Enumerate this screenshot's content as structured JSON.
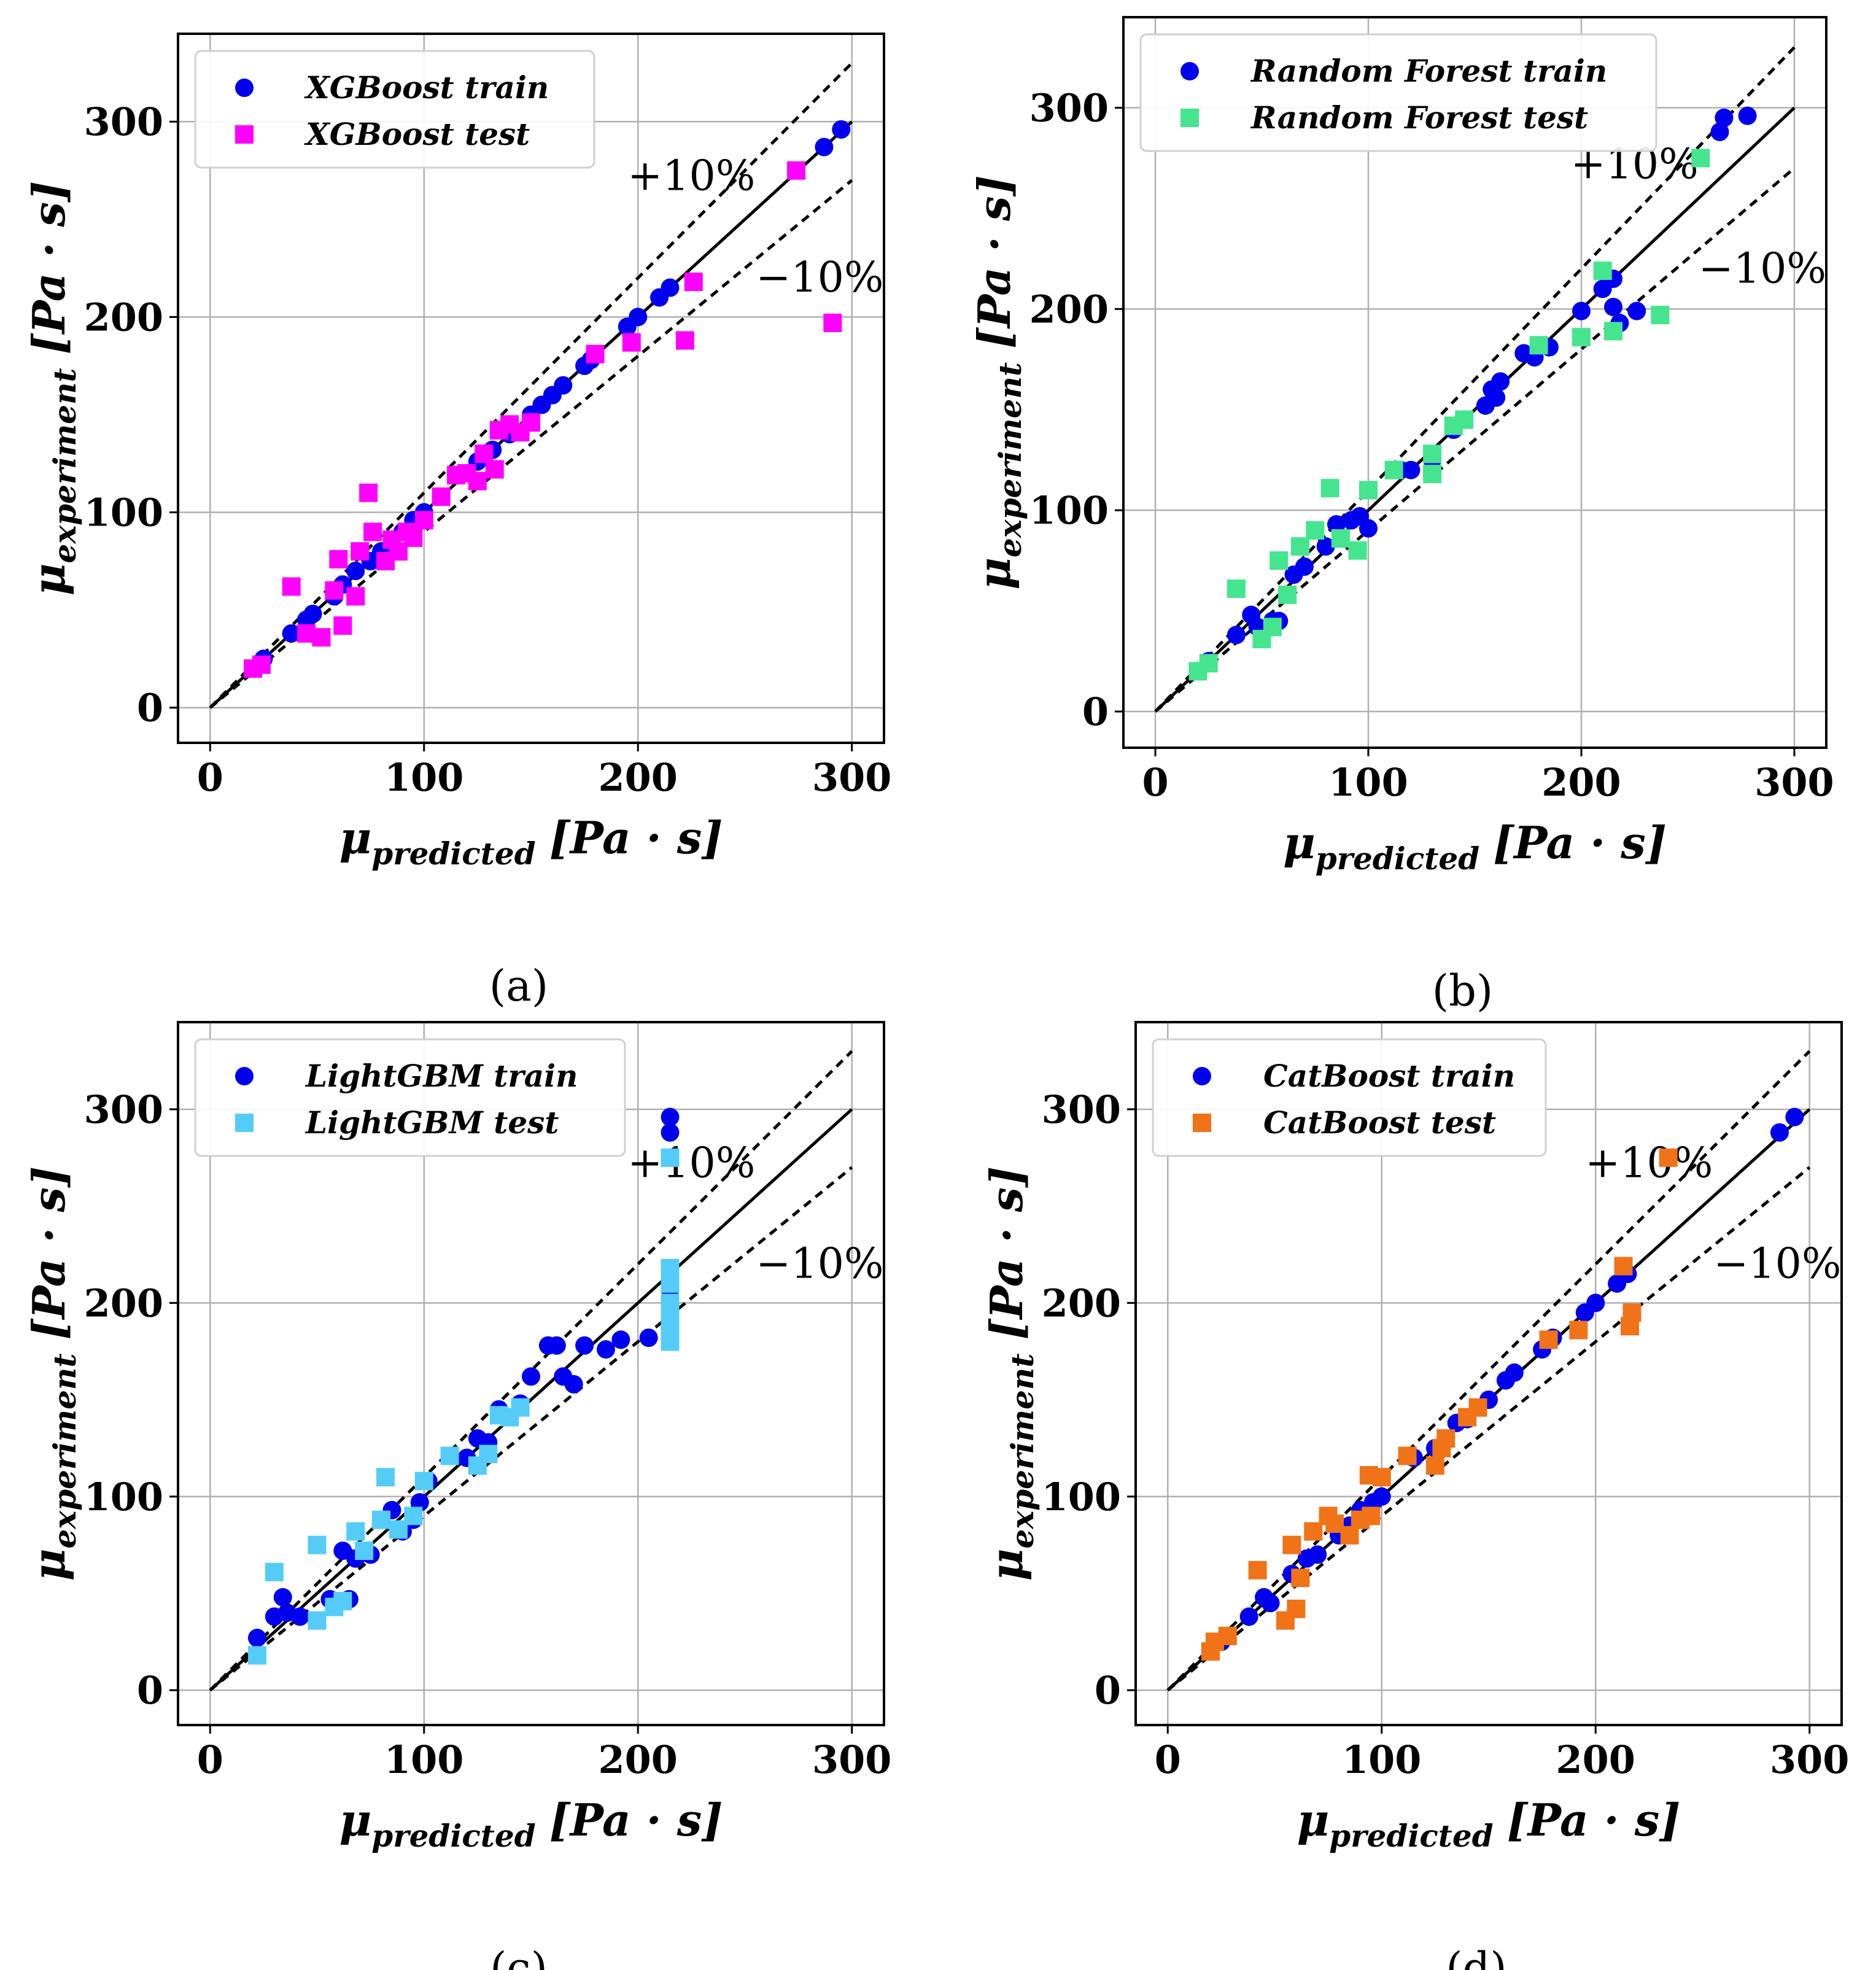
{
  "chart_data": [
    {
      "type": "scatter",
      "panel_label": "(a)",
      "xlabel": {
        "main": "μ",
        "sub": "predicted",
        "unit": "[Pa · s]"
      },
      "ylabel": {
        "main": "μ",
        "sub": "experiment",
        "unit": "[Pa · s]"
      },
      "xlim": [
        -15,
        315
      ],
      "ylim": [
        -18,
        345
      ],
      "xticks": [
        "0",
        "100",
        "200",
        "300"
      ],
      "yticks": [
        "0",
        "100",
        "200",
        "300"
      ],
      "grid": true,
      "legend_position": "top-left",
      "band_labels": [
        "+10%",
        "−10%"
      ],
      "series": [
        {
          "name": "XGBoost train",
          "marker": "circle",
          "color": "#0000ee",
          "points": [
            [
              20,
              20
            ],
            [
              25,
              25
            ],
            [
              38,
              38
            ],
            [
              45,
              45
            ],
            [
              48,
              48
            ],
            [
              58,
              57
            ],
            [
              62,
              63
            ],
            [
              68,
              70
            ],
            [
              75,
              75
            ],
            [
              80,
              80
            ],
            [
              85,
              85
            ],
            [
              90,
              90
            ],
            [
              95,
              96
            ],
            [
              100,
              100
            ],
            [
              108,
              108
            ],
            [
              118,
              120
            ],
            [
              125,
              126
            ],
            [
              132,
              132
            ],
            [
              140,
              140
            ],
            [
              150,
              150
            ],
            [
              155,
              155
            ],
            [
              160,
              160
            ],
            [
              165,
              165
            ],
            [
              175,
              175
            ],
            [
              178,
              178
            ],
            [
              195,
              195
            ],
            [
              200,
              200
            ],
            [
              210,
              210
            ],
            [
              215,
              215
            ],
            [
              287,
              287
            ],
            [
              295,
              296
            ]
          ]
        },
        {
          "name": "XGBoost test",
          "marker": "square",
          "color": "#ff00ff",
          "points": [
            [
              20,
              20
            ],
            [
              24,
              22
            ],
            [
              38,
              62
            ],
            [
              45,
              38
            ],
            [
              52,
              36
            ],
            [
              58,
              60
            ],
            [
              60,
              76
            ],
            [
              62,
              42
            ],
            [
              68,
              57
            ],
            [
              70,
              80
            ],
            [
              74,
              110
            ],
            [
              76,
              90
            ],
            [
              82,
              75
            ],
            [
              85,
              86
            ],
            [
              88,
              80
            ],
            [
              92,
              90
            ],
            [
              95,
              87
            ],
            [
              100,
              96
            ],
            [
              108,
              108
            ],
            [
              115,
              119
            ],
            [
              120,
              120
            ],
            [
              125,
              116
            ],
            [
              128,
              130
            ],
            [
              133,
              122
            ],
            [
              135,
              142
            ],
            [
              140,
              145
            ],
            [
              145,
              141
            ],
            [
              150,
              146
            ],
            [
              180,
              181
            ],
            [
              197,
              187
            ],
            [
              222,
              188
            ],
            [
              226,
              218
            ],
            [
              274,
              275
            ],
            [
              291,
              197
            ]
          ]
        }
      ]
    },
    {
      "type": "scatter",
      "panel_label": "(b)",
      "xlabel": {
        "main": "μ",
        "sub": "predicted",
        "unit": "[Pa · s]"
      },
      "ylabel": {
        "main": "μ",
        "sub": "experiment",
        "unit": "[Pa · s]"
      },
      "xlim": [
        -15,
        315
      ],
      "ylim": [
        -18,
        345
      ],
      "xticks": [
        "0",
        "100",
        "200",
        "300"
      ],
      "yticks": [
        "0",
        "100",
        "200",
        "300"
      ],
      "grid": true,
      "legend_position": "top-left",
      "band_labels": [
        "+10%",
        "−10%"
      ],
      "series": [
        {
          "name": "Random Forest train",
          "marker": "circle",
          "color": "#0000ee",
          "points": [
            [
              20,
              20
            ],
            [
              25,
              25
            ],
            [
              38,
              38
            ],
            [
              45,
              48
            ],
            [
              48,
              42
            ],
            [
              55,
              45
            ],
            [
              58,
              45
            ],
            [
              65,
              68
            ],
            [
              70,
              72
            ],
            [
              80,
              82
            ],
            [
              85,
              93
            ],
            [
              92,
              95
            ],
            [
              96,
              97
            ],
            [
              100,
              91
            ],
            [
              115,
              120
            ],
            [
              120,
              120
            ],
            [
              130,
              125
            ],
            [
              140,
              140
            ],
            [
              145,
              145
            ],
            [
              155,
              152
            ],
            [
              158,
              160
            ],
            [
              160,
              156
            ],
            [
              162,
              164
            ],
            [
              173,
              178
            ],
            [
              178,
              176
            ],
            [
              185,
              181
            ],
            [
              200,
              199
            ],
            [
              210,
              210
            ],
            [
              215,
              215
            ],
            [
              215,
              201
            ],
            [
              218,
              193
            ],
            [
              226,
              199
            ],
            [
              265,
              288
            ],
            [
              267,
              295
            ],
            [
              278,
              296
            ]
          ]
        },
        {
          "name": "Random Forest test",
          "marker": "square",
          "color": "#44e58e",
          "points": [
            [
              20,
              20
            ],
            [
              25,
              24
            ],
            [
              38,
              61
            ],
            [
              50,
              36
            ],
            [
              55,
              42
            ],
            [
              58,
              75
            ],
            [
              62,
              58
            ],
            [
              68,
              82
            ],
            [
              75,
              90
            ],
            [
              82,
              111
            ],
            [
              87,
              86
            ],
            [
              95,
              80
            ],
            [
              100,
              110
            ],
            [
              112,
              120
            ],
            [
              130,
              118
            ],
            [
              130,
              128
            ],
            [
              140,
              142
            ],
            [
              145,
              145
            ],
            [
              180,
              182
            ],
            [
              200,
              186
            ],
            [
              210,
              219
            ],
            [
              215,
              189
            ],
            [
              237,
              197
            ],
            [
              256,
              275
            ]
          ]
        }
      ]
    },
    {
      "type": "scatter",
      "panel_label": "(c)",
      "xlabel": {
        "main": "μ",
        "sub": "predicted",
        "unit": "[Pa · s]"
      },
      "ylabel": {
        "main": "μ",
        "sub": "experiment",
        "unit": "[Pa · s]"
      },
      "xlim": [
        -15,
        315
      ],
      "ylim": [
        -18,
        345
      ],
      "xticks": [
        "0",
        "100",
        "200",
        "300"
      ],
      "yticks": [
        "0",
        "100",
        "200",
        "300"
      ],
      "grid": true,
      "legend_position": "top-left",
      "band_labels": [
        "+10%",
        "−10%"
      ],
      "series": [
        {
          "name": "LightGBM train",
          "marker": "circle",
          "color": "#0000ee",
          "points": [
            [
              22,
              27
            ],
            [
              30,
              38
            ],
            [
              34,
              48
            ],
            [
              36,
              40
            ],
            [
              42,
              38
            ],
            [
              56,
              47
            ],
            [
              62,
              72
            ],
            [
              65,
              47
            ],
            [
              68,
              68
            ],
            [
              75,
              70
            ],
            [
              85,
              93
            ],
            [
              90,
              82
            ],
            [
              95,
              88
            ],
            [
              98,
              97
            ],
            [
              102,
              108
            ],
            [
              120,
              120
            ],
            [
              125,
              130
            ],
            [
              130,
              128
            ],
            [
              135,
              145
            ],
            [
              145,
              148
            ],
            [
              150,
              162
            ],
            [
              158,
              178
            ],
            [
              162,
              178
            ],
            [
              165,
              162
            ],
            [
              170,
              158
            ],
            [
              175,
              178
            ],
            [
              185,
              176
            ],
            [
              192,
              181
            ],
            [
              205,
              182
            ],
            [
              215,
              207
            ],
            [
              215,
              190
            ],
            [
              215,
              183
            ],
            [
              215,
              288
            ],
            [
              215,
              296
            ]
          ]
        },
        {
          "name": "LightGBM test",
          "marker": "square",
          "color": "#55ccf7",
          "points": [
            [
              22,
              18
            ],
            [
              30,
              61
            ],
            [
              50,
              36
            ],
            [
              50,
              75
            ],
            [
              58,
              43
            ],
            [
              62,
              46
            ],
            [
              68,
              82
            ],
            [
              72,
              72
            ],
            [
              80,
              88
            ],
            [
              82,
              110
            ],
            [
              88,
              83
            ],
            [
              95,
              90
            ],
            [
              100,
              108
            ],
            [
              112,
              121
            ],
            [
              125,
              116
            ],
            [
              130,
              122
            ],
            [
              135,
              142
            ],
            [
              140,
              141
            ],
            [
              145,
              146
            ],
            [
              215,
              180
            ],
            [
              215,
              186
            ],
            [
              215,
              192
            ],
            [
              215,
              200
            ],
            [
              215,
              210
            ],
            [
              215,
              218
            ],
            [
              215,
              275
            ]
          ]
        }
      ]
    },
    {
      "type": "scatter",
      "panel_label": "(d)",
      "xlabel": {
        "main": "μ",
        "sub": "predicted",
        "unit": "[Pa · s]"
      },
      "ylabel": {
        "main": "μ",
        "sub": "experiment",
        "unit": "[Pa · s]"
      },
      "xlim": [
        -15,
        315
      ],
      "ylim": [
        -18,
        345
      ],
      "xticks": [
        "0",
        "100",
        "200",
        "300"
      ],
      "yticks": [
        "0",
        "100",
        "200",
        "300"
      ],
      "grid": true,
      "legend_position": "top-left",
      "band_labels": [
        "+10%",
        "−10%"
      ],
      "series": [
        {
          "name": "CatBoost train",
          "marker": "circle",
          "color": "#0000ee",
          "points": [
            [
              20,
              20
            ],
            [
              25,
              25
            ],
            [
              38,
              38
            ],
            [
              45,
              48
            ],
            [
              48,
              45
            ],
            [
              58,
              60
            ],
            [
              65,
              68
            ],
            [
              70,
              70
            ],
            [
              80,
              80
            ],
            [
              85,
              85
            ],
            [
              90,
              93
            ],
            [
              96,
              97
            ],
            [
              100,
              100
            ],
            [
              115,
              120
            ],
            [
              125,
              125
            ],
            [
              135,
              138
            ],
            [
              140,
              140
            ],
            [
              150,
              150
            ],
            [
              158,
              160
            ],
            [
              162,
              164
            ],
            [
              175,
              176
            ],
            [
              180,
              182
            ],
            [
              195,
              195
            ],
            [
              200,
              200
            ],
            [
              210,
              210
            ],
            [
              215,
              215
            ],
            [
              286,
              288
            ],
            [
              293,
              296
            ]
          ]
        },
        {
          "name": "CatBoost test",
          "marker": "square",
          "color": "#f07318",
          "points": [
            [
              20,
              20
            ],
            [
              22,
              25
            ],
            [
              28,
              28
            ],
            [
              42,
              62
            ],
            [
              55,
              36
            ],
            [
              58,
              75
            ],
            [
              60,
              42
            ],
            [
              62,
              58
            ],
            [
              68,
              82
            ],
            [
              75,
              90
            ],
            [
              78,
              86
            ],
            [
              85,
              80
            ],
            [
              90,
              88
            ],
            [
              94,
              111
            ],
            [
              95,
              90
            ],
            [
              100,
              110
            ],
            [
              112,
              121
            ],
            [
              125,
              116
            ],
            [
              128,
              125
            ],
            [
              130,
              130
            ],
            [
              140,
              141
            ],
            [
              145,
              146
            ],
            [
              178,
              181
            ],
            [
              192,
              186
            ],
            [
              213,
              219
            ],
            [
              216,
              188
            ],
            [
              217,
              195
            ],
            [
              234,
              275
            ]
          ]
        }
      ]
    }
  ]
}
